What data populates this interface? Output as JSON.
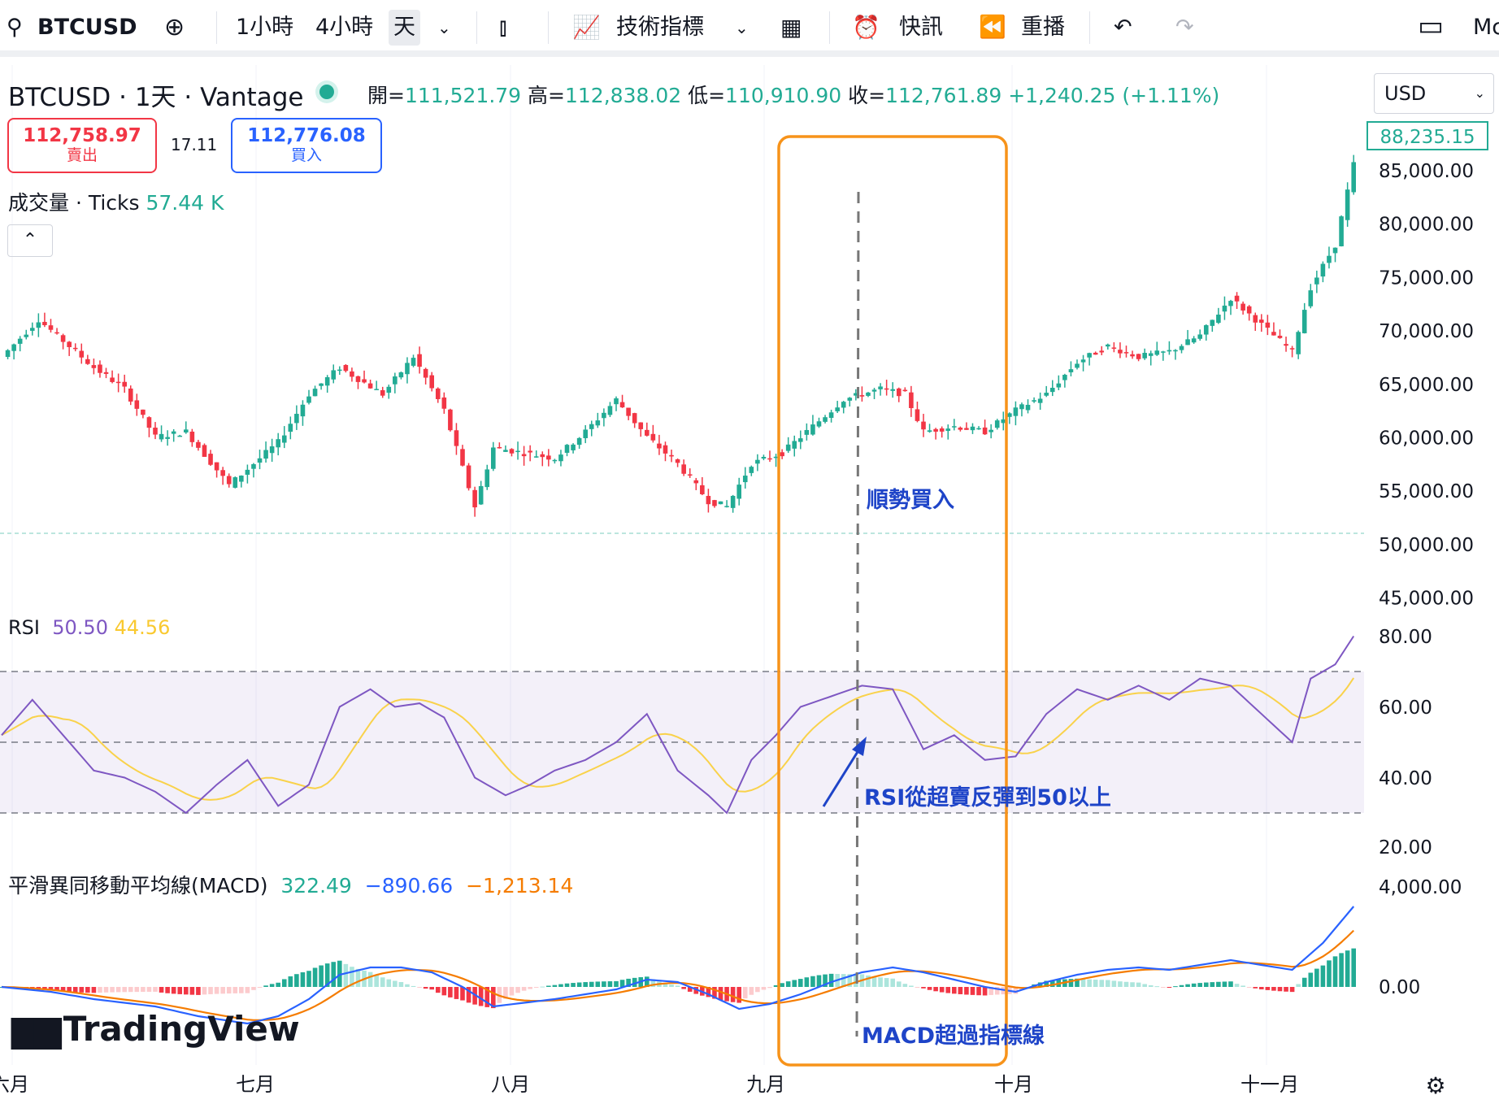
{
  "toolbar": {
    "symbol": "BTCUSD",
    "intervals": [
      "1小時",
      "4小時",
      "天"
    ],
    "indicators_label": "技術指標",
    "alerts_label": "快訊",
    "replay_label": "重播",
    "cut_text": "Mc"
  },
  "header": {
    "title": "BTCUSD · 1天 · Vantage",
    "ohlc": [
      {
        "k": "開=",
        "v": "111,521.79"
      },
      {
        "k": "高=",
        "v": "112,838.02"
      },
      {
        "k": "低=",
        "v": "110,910.90"
      },
      {
        "k": "收=",
        "v": "112,761.89"
      }
    ],
    "change": "+1,240.25 (+1.11%)",
    "currency": "USD"
  },
  "trade": {
    "sell_price": "112,758.97",
    "sell_label": "賣出",
    "spread": "17.11",
    "buy_price": "112,776.08",
    "buy_label": "買入"
  },
  "volume": {
    "label": "成交量 · Ticks",
    "value": "57.44 K"
  },
  "colors": {
    "up": "#22ab94",
    "down": "#f23645",
    "rsi": "#7e57c2",
    "rsi_ma": "#f9d24b",
    "macd": "#2962ff",
    "signal": "#f57c00",
    "highlight": "#f7931a",
    "annot": "#1e44c8"
  },
  "rsi_legend": {
    "label": "RSI",
    "v1": "50.50",
    "v2": "44.56"
  },
  "macd_legend": {
    "label": "平滑異同移動平均線(MACD)",
    "v1": "322.49",
    "v2": "−890.66",
    "v3": "−1,213.14"
  },
  "annotations": {
    "buy": "順勢買入",
    "rsi": "RSI從超賣反彈到50以上",
    "macd": "MACD超過指標線"
  },
  "brand": "TradingView",
  "chart_data": [
    {
      "type": "candlestick",
      "xlabels": [
        "六月",
        "七月",
        "八月",
        "九月",
        "十月",
        "十一月"
      ],
      "ylabels": [
        "85,000.00",
        "80,000.00",
        "75,000.00",
        "70,000.00",
        "65,000.00",
        "60,000.00",
        "55,000.00",
        "50,000.00",
        "45,000.00"
      ],
      "last_price_label": "88,235.15",
      "ylim": [
        45000,
        90000
      ],
      "anchors": [
        [
          0,
          67500
        ],
        [
          6,
          71000
        ],
        [
          10,
          69000
        ],
        [
          15,
          66500
        ],
        [
          20,
          64500
        ],
        [
          25,
          60000
        ],
        [
          30,
          60500
        ],
        [
          37,
          55500
        ],
        [
          40,
          57000
        ],
        [
          45,
          59500
        ],
        [
          50,
          64000
        ],
        [
          55,
          66500
        ],
        [
          62,
          64000
        ],
        [
          67,
          67500
        ],
        [
          72,
          62500
        ],
        [
          77,
          53500
        ],
        [
          80,
          59000
        ],
        [
          85,
          58500
        ],
        [
          90,
          58000
        ],
        [
          95,
          60500
        ],
        [
          100,
          63500
        ],
        [
          105,
          60000
        ],
        [
          110,
          57500
        ],
        [
          115,
          54000
        ],
        [
          118,
          53500
        ],
        [
          122,
          57500
        ],
        [
          127,
          58500
        ],
        [
          132,
          61000
        ],
        [
          137,
          63500
        ],
        [
          143,
          64500
        ],
        [
          147,
          64000
        ],
        [
          150,
          60500
        ],
        [
          155,
          61000
        ],
        [
          160,
          60500
        ],
        [
          165,
          62500
        ],
        [
          170,
          64000
        ],
        [
          175,
          67000
        ],
        [
          180,
          68500
        ],
        [
          185,
          67500
        ],
        [
          190,
          68000
        ],
        [
          195,
          69500
        ],
        [
          200,
          73000
        ],
        [
          205,
          70500
        ],
        [
          210,
          68000
        ],
        [
          213,
          74000
        ],
        [
          217,
          78000
        ],
        [
          220,
          85500
        ]
      ]
    },
    {
      "type": "line",
      "name": "RSI",
      "ylabels": [
        "80.00",
        "60.00",
        "40.00",
        "20.00"
      ],
      "ylim": [
        20,
        80
      ],
      "bands": [
        30,
        50,
        70
      ],
      "anchors": [
        [
          0,
          52
        ],
        [
          5,
          62
        ],
        [
          10,
          52
        ],
        [
          15,
          42
        ],
        [
          20,
          40
        ],
        [
          25,
          36
        ],
        [
          30,
          30
        ],
        [
          35,
          38
        ],
        [
          40,
          45
        ],
        [
          45,
          32
        ],
        [
          50,
          38
        ],
        [
          55,
          60
        ],
        [
          60,
          65
        ],
        [
          64,
          60
        ],
        [
          68,
          61
        ],
        [
          72,
          57
        ],
        [
          77,
          40
        ],
        [
          82,
          35
        ],
        [
          86,
          38
        ],
        [
          90,
          42
        ],
        [
          95,
          45
        ],
        [
          100,
          50
        ],
        [
          105,
          58
        ],
        [
          110,
          42
        ],
        [
          115,
          35
        ],
        [
          118,
          30
        ],
        [
          122,
          45
        ],
        [
          126,
          52
        ],
        [
          130,
          60
        ],
        [
          135,
          63
        ],
        [
          140,
          66
        ],
        [
          145,
          65
        ],
        [
          150,
          48
        ],
        [
          155,
          52
        ],
        [
          160,
          45
        ],
        [
          165,
          46
        ],
        [
          170,
          58
        ],
        [
          175,
          65
        ],
        [
          180,
          62
        ],
        [
          185,
          66
        ],
        [
          190,
          62
        ],
        [
          195,
          68
        ],
        [
          200,
          66
        ],
        [
          205,
          58
        ],
        [
          210,
          50
        ],
        [
          213,
          68
        ],
        [
          217,
          72
        ],
        [
          220,
          80
        ]
      ]
    },
    {
      "type": "line",
      "name": "MACD",
      "ylabels": [
        "4,000.00",
        "0.00"
      ],
      "ylim": [
        -2500,
        5000
      ],
      "anchors": [
        [
          0,
          0
        ],
        [
          8,
          -200
        ],
        [
          15,
          -500
        ],
        [
          25,
          -800
        ],
        [
          32,
          -1200
        ],
        [
          40,
          -1500
        ],
        [
          45,
          -1200
        ],
        [
          50,
          -500
        ],
        [
          55,
          500
        ],
        [
          60,
          800
        ],
        [
          65,
          800
        ],
        [
          70,
          600
        ],
        [
          75,
          0
        ],
        [
          80,
          -800
        ],
        [
          90,
          -500
        ],
        [
          95,
          -300
        ],
        [
          100,
          -100
        ],
        [
          105,
          300
        ],
        [
          110,
          200
        ],
        [
          115,
          -300
        ],
        [
          120,
          -900
        ],
        [
          125,
          -700
        ],
        [
          130,
          -300
        ],
        [
          135,
          200
        ],
        [
          140,
          600
        ],
        [
          145,
          800
        ],
        [
          150,
          600
        ],
        [
          155,
          300
        ],
        [
          160,
          0
        ],
        [
          165,
          -200
        ],
        [
          170,
          200
        ],
        [
          175,
          500
        ],
        [
          180,
          700
        ],
        [
          185,
          800
        ],
        [
          190,
          700
        ],
        [
          195,
          900
        ],
        [
          200,
          1100
        ],
        [
          205,
          900
        ],
        [
          210,
          700
        ],
        [
          215,
          1800
        ],
        [
          220,
          3300
        ]
      ]
    }
  ]
}
